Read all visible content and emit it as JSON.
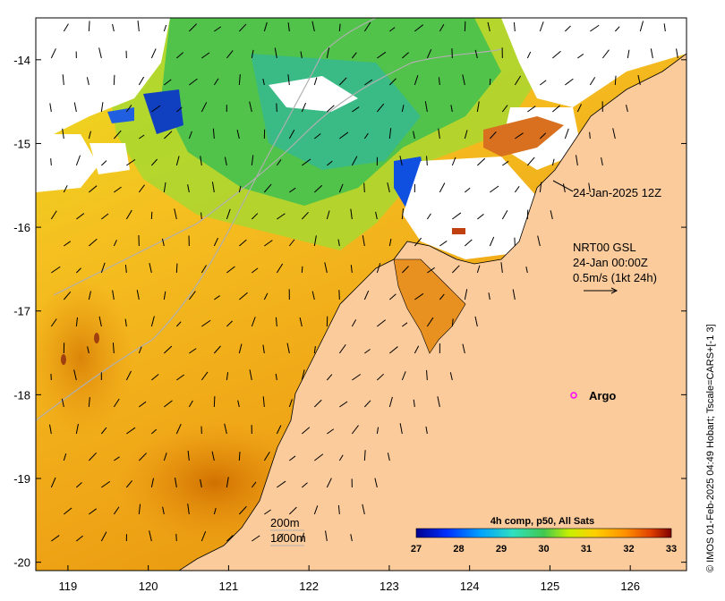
{
  "map": {
    "x_ticks": [
      "119",
      "120",
      "121",
      "122",
      "123",
      "124",
      "125",
      "126"
    ],
    "y_ticks": [
      "-14",
      "-15",
      "-16",
      "-17",
      "-18",
      "-19",
      "-20"
    ],
    "x_range": [
      118.6,
      126.7
    ],
    "y_range": [
      -20.1,
      -13.5
    ]
  },
  "annotations": {
    "date_label": "24-Jan-2025 12Z",
    "current_line1": "NRT00 GSL",
    "current_line2": "24-Jan 00:00Z",
    "current_line3": "0.5m/s (1kt 24h)",
    "argo_label": "Argo",
    "contour1": "200m",
    "contour2": "1000m"
  },
  "colorbar": {
    "title": "4h comp, p50, All Sats",
    "ticks": [
      "27",
      "28",
      "29",
      "30",
      "31",
      "32",
      "33"
    ]
  },
  "credit": "© IMOS 01-Feb-2025 04:49 Hobart; Tscale=CARS+[-1 3]",
  "colors": {
    "land": "#FCCB9C",
    "cloud": "#FFFFFF",
    "argo": "#FF00FF"
  }
}
